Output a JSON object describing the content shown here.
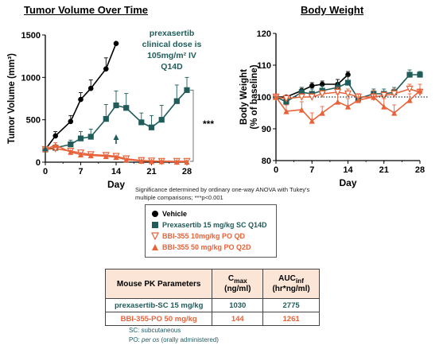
{
  "chart_data": [
    {
      "type": "line",
      "title": "Tumor Volume Over Time",
      "xlabel": "Day",
      "ylabel": "Tumor Volume (mm³)",
      "xlim": [
        0,
        28
      ],
      "ylim": [
        0,
        1500
      ],
      "xticks": [
        0,
        7,
        14,
        21,
        28
      ],
      "yticks": [
        0,
        500,
        1000,
        1500
      ],
      "annotation": "prexasertib clinical dose is 105mg/m² IV Q14D",
      "significance": "***",
      "series": [
        {
          "name": "Vehicle",
          "color": "#000000",
          "marker": "circle",
          "x": [
            0,
            2,
            5,
            7,
            9,
            12,
            14
          ],
          "y": [
            150,
            310,
            480,
            740,
            870,
            1100,
            1400
          ],
          "err": [
            30,
            50,
            70,
            80,
            100,
            130,
            15
          ]
        },
        {
          "name": "Prexasertib 15 mg/kg SC Q14D",
          "color": "#1f5c5a",
          "marker": "square",
          "x": [
            0,
            2,
            5,
            7,
            9,
            12,
            14,
            16,
            19,
            21,
            23,
            26,
            28
          ],
          "y": [
            150,
            170,
            210,
            280,
            300,
            510,
            670,
            640,
            470,
            410,
            500,
            720,
            850
          ],
          "err": [
            30,
            30,
            50,
            80,
            90,
            170,
            170,
            170,
            110,
            140,
            170,
            190,
            150
          ]
        },
        {
          "name": "BBI-355 10mg/kg PO QD",
          "color": "#e8623a",
          "marker": "triangle-down-open",
          "x": [
            0,
            2,
            5,
            7,
            9,
            12,
            14,
            16,
            19,
            21,
            23,
            26,
            28
          ],
          "y": [
            150,
            160,
            130,
            110,
            90,
            80,
            70,
            40,
            20,
            15,
            10,
            10,
            10
          ],
          "err": [
            20,
            20,
            20,
            20,
            15,
            15,
            15,
            10,
            5,
            5,
            5,
            5,
            5
          ]
        },
        {
          "name": "BBI-355 50 mg/kg PO Q2D",
          "color": "#e8623a",
          "marker": "triangle-up",
          "x": [
            0,
            2,
            5,
            7,
            9,
            12,
            14,
            16,
            19,
            21,
            23,
            26,
            28
          ],
          "y": [
            150,
            200,
            120,
            90,
            80,
            70,
            60,
            30,
            15,
            10,
            10,
            5,
            5
          ],
          "err": [
            20,
            30,
            20,
            20,
            15,
            15,
            10,
            8,
            5,
            5,
            5,
            5,
            5
          ]
        }
      ],
      "dosing_markers": [
        {
          "day": 0,
          "color": "#1f5c5a"
        },
        {
          "day": 14,
          "color": "#1f5c5a"
        }
      ]
    },
    {
      "type": "line",
      "title": "Body Weight",
      "xlabel": "Day",
      "ylabel": "Body Weight (% of baseline)",
      "xlim": [
        0,
        28
      ],
      "ylim": [
        80,
        120
      ],
      "xticks": [
        0,
        7,
        14,
        21,
        28
      ],
      "yticks": [
        80,
        90,
        100,
        110,
        120
      ],
      "reference_line": 100,
      "series": [
        {
          "name": "Vehicle",
          "color": "#000000",
          "marker": "circle",
          "x": [
            0,
            2,
            5,
            7,
            9,
            12,
            14
          ],
          "y": [
            100,
            100,
            102,
            103.5,
            104,
            104,
            107
          ],
          "err": [
            0.5,
            0.5,
            1,
            1,
            1,
            1.5,
            1
          ]
        },
        {
          "name": "Prexasertib 15 mg/kg SC Q14D",
          "color": "#1f5c5a",
          "marker": "square",
          "x": [
            0,
            2,
            5,
            7,
            9,
            12,
            14,
            16,
            19,
            21,
            23,
            26,
            28
          ],
          "y": [
            100,
            98.5,
            101.5,
            101,
            102,
            103,
            104.5,
            99.5,
            101,
            101,
            101.5,
            107,
            107
          ],
          "err": [
            0.5,
            1,
            1.5,
            1.5,
            1.5,
            1.5,
            2,
            1.5,
            1.5,
            1.5,
            1.5,
            1.5,
            1
          ]
        },
        {
          "name": "BBI-355 10mg/kg PO QD",
          "color": "#e8623a",
          "marker": "triangle-down-open",
          "x": [
            0,
            2,
            5,
            7,
            9,
            12,
            14,
            16,
            19,
            21,
            23,
            26,
            28
          ],
          "y": [
            100,
            99.5,
            100,
            100,
            101,
            101.5,
            101,
            100,
            100,
            100.5,
            101,
            102.5,
            101.5
          ],
          "err": [
            0.5,
            1,
            1,
            1,
            1,
            1.5,
            1.5,
            1,
            1,
            1,
            1.5,
            1.5,
            1
          ]
        },
        {
          "name": "BBI-355 50 mg/kg PO Q2D",
          "color": "#e8623a",
          "marker": "triangle-up",
          "x": [
            0,
            2,
            5,
            7,
            9,
            12,
            14,
            16,
            19,
            21,
            23,
            26,
            28
          ],
          "y": [
            100,
            95.5,
            96,
            92.5,
            95,
            98.5,
            97,
            99,
            100,
            97,
            95,
            99,
            102
          ],
          "err": [
            0.5,
            2,
            2.5,
            2.5,
            2,
            2.5,
            2.5,
            2,
            2,
            2.5,
            2.5,
            2,
            2
          ]
        }
      ]
    }
  ],
  "stats_note": "Significance determined by ordinary one-way ANOVA with Tukey's multiple comparisons; ***p<0.001",
  "legend": [
    {
      "label": "Vehicle",
      "color": "#000000",
      "text_color": "#000000",
      "marker": "circle"
    },
    {
      "label": "Prexasertib 15 mg/kg SC Q14D",
      "color": "#1f5c5a",
      "text_color": "#1f5c5a",
      "marker": "square"
    },
    {
      "label": "BBI-355 10mg/kg PO QD",
      "color": "#e8623a",
      "text_color": "#e8623a",
      "marker": "triangle-down-open"
    },
    {
      "label": "BBI-355 50 mg/kg PO Q2D",
      "color": "#e8623a",
      "text_color": "#e8623a",
      "marker": "triangle-up"
    }
  ],
  "pk_table": {
    "headers": {
      "param": "Mouse PK Parameters",
      "cmax": "C",
      "cmax_sub": "max",
      "cmax_unit": "(ng/ml)",
      "auc": "AUC",
      "auc_sub": "inf",
      "auc_unit": "(hr*ng/ml)"
    },
    "rows": [
      {
        "name": "prexasertib-SC 15 mg/kg",
        "cmax": "1030",
        "auc": "2775",
        "color": "#1f5c5a"
      },
      {
        "name": "BBI-355-PO 50 mg/kg",
        "cmax": "144",
        "auc": "1261",
        "color": "#e8623a"
      }
    ]
  },
  "footnotes": {
    "sc": "SC: subcutaneous",
    "po_prefix": "PO: ",
    "po_italic": "per os",
    "po_suffix": " (orally administered)"
  }
}
